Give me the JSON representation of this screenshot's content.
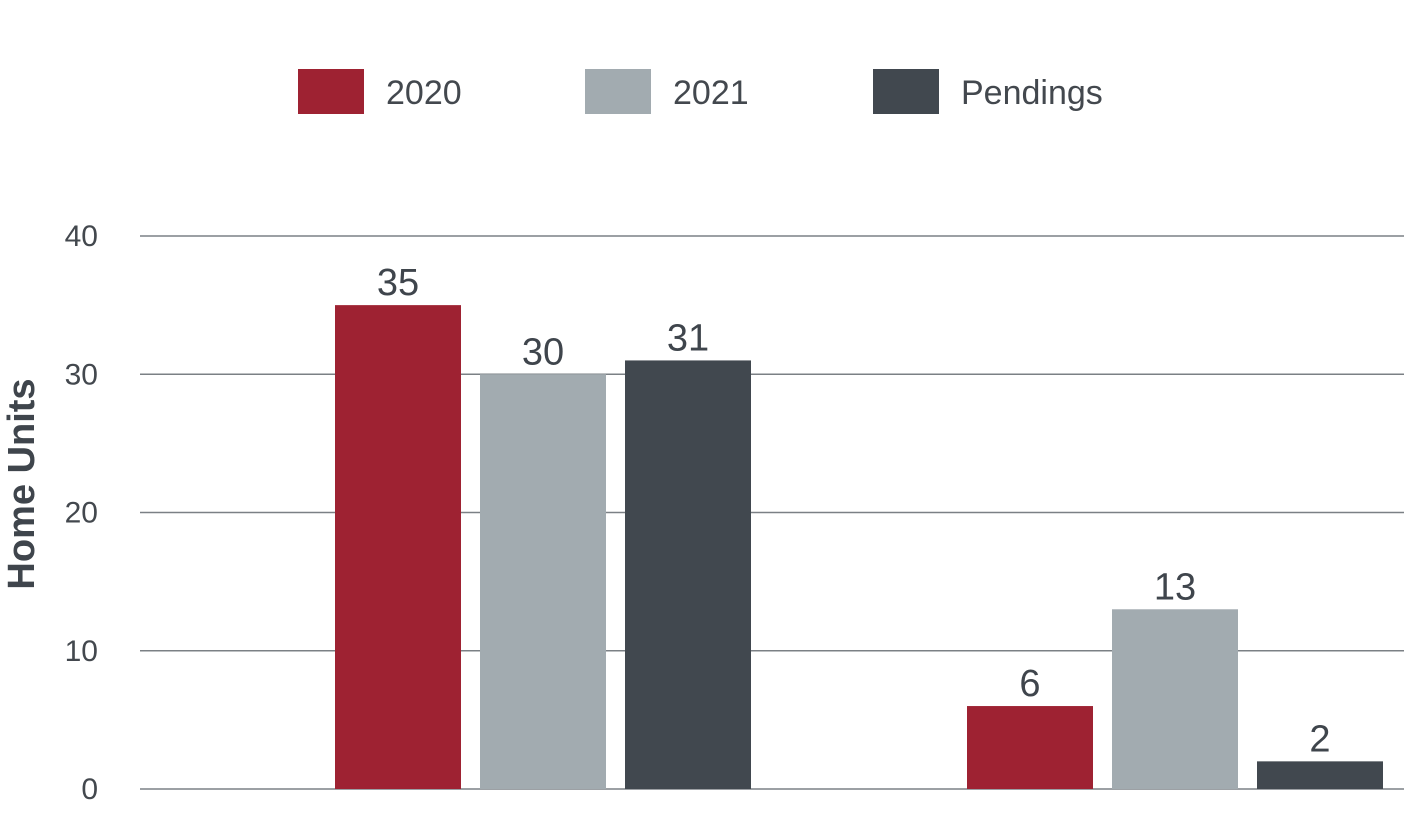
{
  "chart_data": {
    "type": "bar",
    "ylabel": "Home Units",
    "xlabel": "",
    "categories": [
      "",
      ""
    ],
    "ylim": [
      0,
      40
    ],
    "yticks": [
      0,
      10,
      20,
      30,
      40
    ],
    "grid": true,
    "legend_position": "top-center",
    "data_labels": true,
    "series": [
      {
        "name": "2020",
        "color": "#9e2232",
        "values": [
          35,
          6
        ]
      },
      {
        "name": "2021",
        "color": "#a2abb0",
        "values": [
          30,
          13
        ]
      },
      {
        "name": "Pendings",
        "color": "#41484f",
        "values": [
          31,
          2
        ]
      }
    ]
  }
}
